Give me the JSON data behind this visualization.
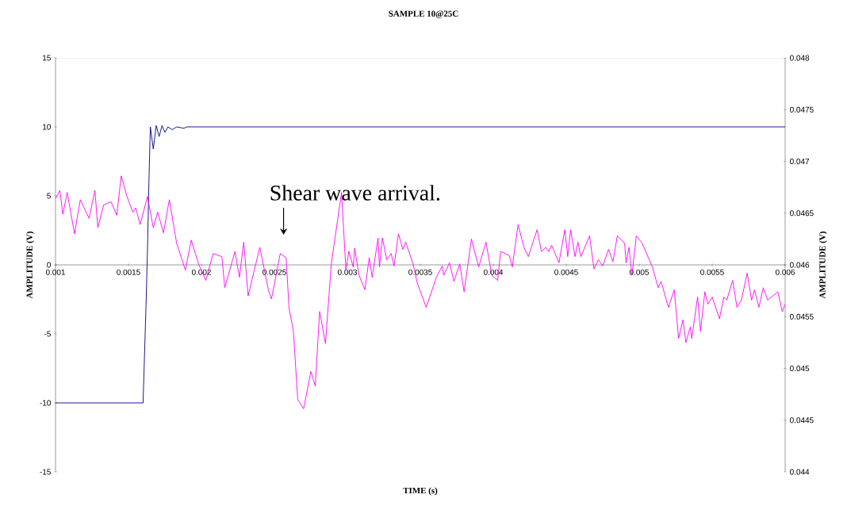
{
  "chart_data": {
    "type": "line",
    "title": "SAMPLE 10@25C",
    "xlabel": "TIME (s)",
    "ylabel": "AMPLITUDE (V)",
    "y2label": "AMPLITUDE (V)",
    "xlim": [
      0.001,
      0.006
    ],
    "xticks": [
      0.001,
      0.0015,
      0.002,
      0.0025,
      0.003,
      0.0035,
      0.004,
      0.0045,
      0.005,
      0.0055,
      0.006
    ],
    "ylim": [
      -15,
      15
    ],
    "yticks": [
      -15,
      -10,
      -5,
      0,
      5,
      10,
      15
    ],
    "y2lim": [
      0.044,
      0.048
    ],
    "y2ticks": [
      0.044,
      0.0445,
      0.045,
      0.0455,
      0.046,
      0.0465,
      0.047,
      0.0475,
      0.048
    ],
    "marker": "none",
    "line_style": "solid",
    "grid": false,
    "annotations": [
      "Shear wave arrival."
    ],
    "series": [
      {
        "color": "#000080",
        "x": [
          0.001,
          0.0016,
          0.00162,
          0.00163,
          0.00164,
          0.00165,
          0.00167,
          0.00169,
          0.00171,
          0.00173,
          0.00175,
          0.00177,
          0.0018,
          0.00183,
          0.00188,
          0.0019,
          0.006
        ],
        "values": [
          -10,
          -10,
          -3,
          1,
          6,
          10,
          8.4,
          10.1,
          9.3,
          10.1,
          9.6,
          10,
          9.8,
          10,
          9.9,
          10,
          10
        ]
      },
      {
        "color": "#ff00ff",
        "axis": "y2",
        "x": [
          0.001,
          0.00103,
          0.00105,
          0.00108,
          0.00113,
          0.00117,
          0.00123,
          0.00127,
          0.00129,
          0.00133,
          0.00138,
          0.00142,
          0.00145,
          0.00149,
          0.00153,
          0.00155,
          0.00158,
          0.00163,
          0.00167,
          0.0017,
          0.00174,
          0.00178,
          0.00183,
          0.00189,
          0.00193,
          0.00198,
          0.00203,
          0.00208,
          0.00214,
          0.00216,
          0.00223,
          0.00226,
          0.00229,
          0.00232,
          0.0024,
          0.00246,
          0.00248,
          0.00254,
          0.00258,
          0.0026,
          0.00263,
          0.00266,
          0.0027,
          0.00275,
          0.00278,
          0.00281,
          0.00285,
          0.00289,
          0.00296,
          0.00299,
          0.00301,
          0.00304,
          0.00305,
          0.00308,
          0.00312,
          0.00315,
          0.00317,
          0.00321,
          0.00322,
          0.00324,
          0.00327,
          0.0033,
          0.00332,
          0.00335,
          0.00338,
          0.0034,
          0.00345,
          0.00348,
          0.00354,
          0.00361,
          0.00365,
          0.00366,
          0.0037,
          0.00373,
          0.00377,
          0.0038,
          0.00385,
          0.0039,
          0.00395,
          0.00399,
          0.00403,
          0.00405,
          0.00411,
          0.00413,
          0.00417,
          0.00421,
          0.00424,
          0.0043,
          0.00433,
          0.00436,
          0.00438,
          0.0044,
          0.00445,
          0.00449,
          0.00451,
          0.00453,
          0.00456,
          0.00458,
          0.0046,
          0.00466,
          0.00469,
          0.00472,
          0.00475,
          0.00479,
          0.00482,
          0.00485,
          0.0049,
          0.00491,
          0.00493,
          0.00495,
          0.00498,
          0.00502,
          0.00509,
          0.00513,
          0.00515,
          0.0052,
          0.00524,
          0.00527,
          0.0053,
          0.00532,
          0.00535,
          0.00536,
          0.0054,
          0.00542,
          0.00545,
          0.00547,
          0.0055,
          0.00555,
          0.00558,
          0.0056,
          0.00564,
          0.00567,
          0.0057,
          0.00574,
          0.00577,
          0.00579,
          0.00582,
          0.00585,
          0.00588,
          0.00595,
          0.00598,
          0.006
        ],
        "values": [
          0.04664,
          0.04672,
          0.04649,
          0.0467,
          0.0463,
          0.04663,
          0.04645,
          0.04672,
          0.04636,
          0.04658,
          0.04661,
          0.04648,
          0.04686,
          0.04666,
          0.04651,
          0.04655,
          0.04639,
          0.04666,
          0.04636,
          0.04651,
          0.04631,
          0.04663,
          0.04621,
          0.04595,
          0.04624,
          0.04601,
          0.04585,
          0.04611,
          0.04608,
          0.04578,
          0.04613,
          0.04588,
          0.04622,
          0.0457,
          0.04617,
          0.04575,
          0.04567,
          0.04611,
          0.04607,
          0.04559,
          0.04536,
          0.0447,
          0.04461,
          0.04497,
          0.04483,
          0.04555,
          0.04524,
          0.04601,
          0.0467,
          0.04595,
          0.04613,
          0.04598,
          0.04616,
          0.0459,
          0.04576,
          0.04607,
          0.04588,
          0.04626,
          0.04598,
          0.04626,
          0.04605,
          0.04611,
          0.04599,
          0.0463,
          0.04615,
          0.04622,
          0.04601,
          0.04582,
          0.04559,
          0.04588,
          0.04599,
          0.0459,
          0.04602,
          0.04584,
          0.04601,
          0.04574,
          0.04625,
          0.04598,
          0.04622,
          0.0459,
          0.04585,
          0.04613,
          0.04609,
          0.04598,
          0.04639,
          0.04617,
          0.04608,
          0.04634,
          0.04613,
          0.04617,
          0.04613,
          0.04619,
          0.04602,
          0.04634,
          0.04608,
          0.04634,
          0.04608,
          0.04622,
          0.04608,
          0.04628,
          0.04596,
          0.04605,
          0.04599,
          0.04615,
          0.04603,
          0.04628,
          0.04621,
          0.04602,
          0.04617,
          0.0459,
          0.04628,
          0.04621,
          0.04598,
          0.04578,
          0.04584,
          0.04559,
          0.04576,
          0.04529,
          0.04547,
          0.04525,
          0.0454,
          0.04529,
          0.04569,
          0.04536,
          0.04574,
          0.04562,
          0.04569,
          0.04548,
          0.04569,
          0.04566,
          0.04585,
          0.04559,
          0.04566,
          0.04592,
          0.04566,
          0.04576,
          0.04559,
          0.04578,
          0.04566,
          0.04574,
          0.04555,
          0.04562
        ]
      }
    ]
  }
}
